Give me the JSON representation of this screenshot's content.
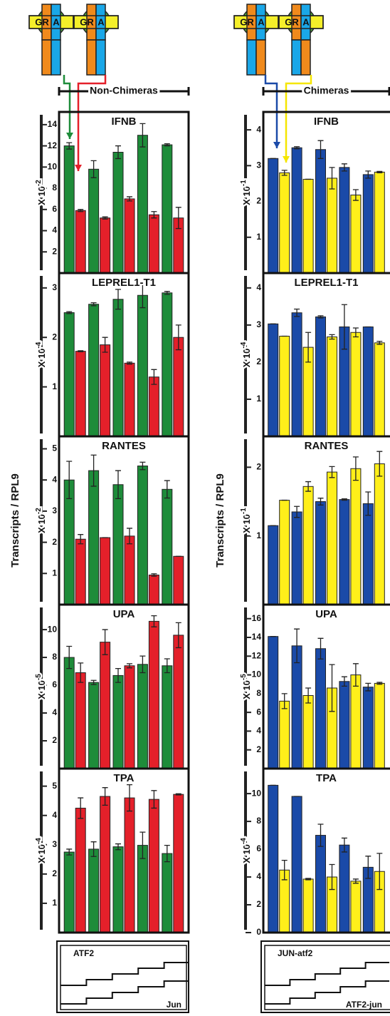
{
  "columns": [
    {
      "header": "Non-Chimeras",
      "y_axis_label": "Transcripts / RPL9",
      "construct_labels": [
        "ATF2",
        "Jun"
      ]
    },
    {
      "header": "Chimeras",
      "y_axis_label": "Transcripts / RPL9",
      "construct_labels": [
        "JUN-atf2",
        "ATF2-jun"
      ]
    }
  ],
  "domain_labels": [
    "GR",
    "A"
  ],
  "chart_data": [
    {
      "type": "bar",
      "title": "IFNB",
      "y_label": "X 10",
      "y_label_exp": "-2",
      "categories": [
        null,
        null,
        null,
        null,
        null
      ],
      "series": [
        {
          "color": "#1e8c3a",
          "values": [
            12,
            9.8,
            11.4,
            13,
            12.1
          ],
          "errors": [
            0.3,
            0.8,
            0.6,
            1.1,
            0.1
          ]
        },
        {
          "color": "#e4202a",
          "values": [
            5.9,
            5.2,
            7.0,
            5.5,
            5.2
          ],
          "errors": [
            0.1,
            0.1,
            0.2,
            0.3,
            1.0
          ]
        }
      ],
      "ylim": [
        0,
        15.2
      ],
      "yticks": [
        2,
        4,
        6,
        8,
        10,
        12,
        14
      ]
    },
    {
      "type": "bar",
      "title": "LEPREL1-T1",
      "y_label": "X 10",
      "y_label_exp": "-4",
      "categories": [
        null,
        null,
        null,
        null,
        null
      ],
      "series": [
        {
          "color": "#1e8c3a",
          "values": [
            2.5,
            2.67,
            2.77,
            2.85,
            2.9
          ],
          "errors": [
            0.02,
            0.03,
            0.2,
            0.25,
            0.03
          ]
        },
        {
          "color": "#e4202a",
          "values": [
            1.72,
            1.85,
            1.48,
            1.2,
            2.0
          ],
          "errors": [
            0.01,
            0.15,
            0.02,
            0.15,
            0.25
          ]
        }
      ],
      "ylim": [
        0,
        3.3
      ],
      "yticks": [
        1,
        2,
        3
      ]
    },
    {
      "type": "bar",
      "title": "RANTES",
      "y_label": "X 10",
      "y_label_exp": "-2",
      "categories": [
        null,
        null,
        null,
        null,
        null
      ],
      "series": [
        {
          "color": "#1e8c3a",
          "values": [
            4.0,
            4.3,
            3.85,
            4.45,
            3.7
          ],
          "errors": [
            0.6,
            0.5,
            0.45,
            0.12,
            0.28
          ]
        },
        {
          "color": "#e4202a",
          "values": [
            2.1,
            2.15,
            2.2,
            0.95,
            1.55
          ],
          "errors": [
            0.15,
            0,
            0.25,
            0.04,
            0
          ]
        }
      ],
      "ylim": [
        0,
        5.4
      ],
      "yticks": [
        1,
        2,
        3,
        4,
        5
      ]
    },
    {
      "type": "bar",
      "title": "UPA",
      "y_label": "X 10",
      "y_label_exp": "-5",
      "categories": [
        null,
        null,
        null,
        null,
        null
      ],
      "series": [
        {
          "color": "#1e8c3a",
          "values": [
            8.0,
            6.2,
            6.7,
            7.5,
            7.4
          ],
          "errors": [
            0.8,
            0.15,
            0.5,
            0.6,
            0.5
          ]
        },
        {
          "color": "#e4202a",
          "values": [
            6.9,
            9.1,
            7.4,
            10.6,
            9.6
          ],
          "errors": [
            0.7,
            0.9,
            0.15,
            0.4,
            0.9
          ]
        }
      ],
      "ylim": [
        0,
        11.8
      ],
      "yticks": [
        2,
        4,
        6,
        8,
        10
      ]
    },
    {
      "type": "bar",
      "title": "TPA",
      "y_label": "X 10",
      "y_label_exp": "-4",
      "categories": [
        null,
        null,
        null,
        null,
        null
      ],
      "series": [
        {
          "color": "#1e8c3a",
          "values": [
            2.75,
            2.85,
            2.93,
            2.98,
            2.7
          ],
          "errors": [
            0.1,
            0.25,
            0.1,
            0.45,
            0.28
          ]
        },
        {
          "color": "#e4202a",
          "values": [
            4.25,
            4.65,
            4.6,
            4.55,
            4.72
          ],
          "errors": [
            0.35,
            0.3,
            0.45,
            0.3,
            0.02
          ]
        }
      ],
      "ylim": [
        0,
        5.6
      ],
      "yticks": [
        1,
        2,
        3,
        4,
        5
      ]
    },
    {
      "type": "bar",
      "title": "IFNB",
      "y_label": "X 10",
      "y_label_exp": "-1",
      "categories": [
        null,
        null,
        null,
        null,
        null
      ],
      "series": [
        {
          "color": "#1a4aa8",
          "values": [
            3.2,
            3.5,
            3.45,
            2.95,
            2.75
          ],
          "errors": [
            0,
            0.03,
            0.25,
            0.1,
            0.1
          ]
        },
        {
          "color": "#ffef1a",
          "values": [
            2.8,
            2.62,
            2.65,
            2.18,
            2.82
          ],
          "errors": [
            0.07,
            0,
            0.3,
            0.15,
            0.02
          ]
        }
      ],
      "ylim": [
        0,
        4.5
      ],
      "yticks": [
        1,
        2,
        3,
        4
      ]
    },
    {
      "type": "bar",
      "title": "LEPREL1-T1",
      "y_label": "X 10",
      "y_label_exp": "-4",
      "categories": [
        null,
        null,
        null,
        null,
        null
      ],
      "series": [
        {
          "color": "#1a4aa8",
          "values": [
            3.03,
            3.33,
            3.22,
            2.95,
            2.95
          ],
          "errors": [
            0,
            0.1,
            0.03,
            0.6,
            0
          ]
        },
        {
          "color": "#ffef1a",
          "values": [
            2.7,
            2.4,
            2.68,
            2.8,
            2.52
          ],
          "errors": [
            0,
            0.4,
            0.06,
            0.12,
            0.04
          ]
        }
      ],
      "ylim": [
        0,
        4.4
      ],
      "yticks": [
        1,
        2,
        3,
        4
      ]
    },
    {
      "type": "bar",
      "title": "RANTES",
      "y_label": "X 10",
      "y_label_exp": "-1",
      "categories": [
        null,
        null,
        null,
        null,
        null
      ],
      "series": [
        {
          "color": "#1a4aa8",
          "values": [
            1.15,
            1.35,
            1.5,
            1.53,
            1.47
          ],
          "errors": [
            0,
            0.08,
            0.05,
            0.01,
            0.17
          ]
        },
        {
          "color": "#ffef1a",
          "values": [
            1.52,
            1.72,
            1.93,
            1.98,
            2.05
          ],
          "errors": [
            0,
            0.07,
            0.08,
            0.17,
            0.18
          ]
        }
      ],
      "ylim": [
        0,
        2.45
      ],
      "yticks": [
        1,
        2
      ]
    },
    {
      "type": "bar",
      "title": "UPA",
      "y_label": "X 10",
      "y_label_exp": "-5",
      "categories": [
        null,
        null,
        null,
        null,
        null
      ],
      "series": [
        {
          "color": "#1a4aa8",
          "values": [
            14.1,
            13.1,
            12.8,
            9.3,
            8.7
          ],
          "errors": [
            0,
            1.8,
            1.1,
            0.5,
            0.4
          ]
        },
        {
          "color": "#ffef1a",
          "values": [
            7.2,
            7.8,
            8.6,
            10.0,
            9.1
          ],
          "errors": [
            0.8,
            0.8,
            2.5,
            1.2,
            0.1
          ]
        }
      ],
      "ylim": [
        0,
        17.5
      ],
      "yticks": [
        2,
        4,
        6,
        8,
        10,
        12,
        14,
        16
      ]
    },
    {
      "type": "bar",
      "title": "TPA",
      "y_label": "X 10",
      "y_label_exp": "-4",
      "categories": [
        null,
        null,
        null,
        null,
        null
      ],
      "series": [
        {
          "color": "#1a4aa8",
          "values": [
            10.6,
            9.8,
            7.0,
            6.3,
            4.7
          ],
          "errors": [
            0,
            0,
            0.8,
            0.5,
            0.8
          ]
        },
        {
          "color": "#ffef1a",
          "values": [
            4.5,
            3.85,
            4.0,
            3.7,
            4.4
          ],
          "errors": [
            0.7,
            0.05,
            0.9,
            0.15,
            1.3
          ]
        }
      ],
      "ylim": [
        0,
        11.8
      ],
      "yticks": [
        0,
        2,
        4,
        6,
        8,
        10
      ]
    }
  ]
}
